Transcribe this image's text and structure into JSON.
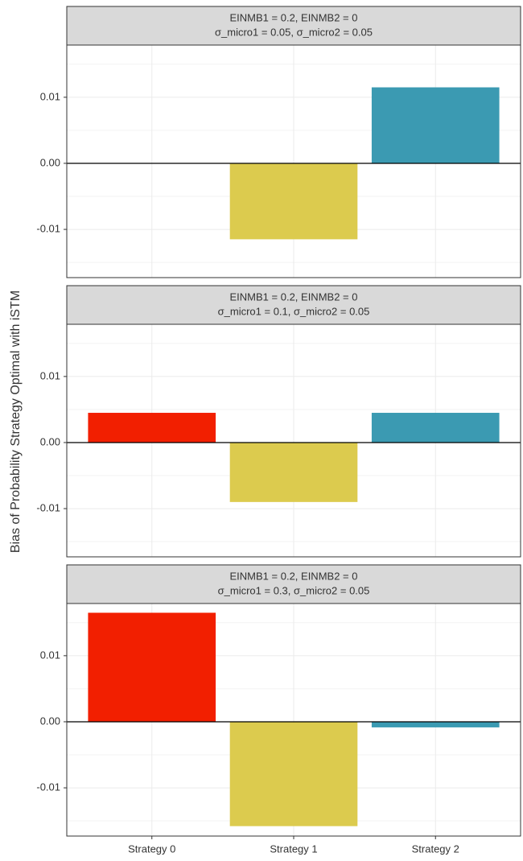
{
  "ylabel": "Bias of Probability Strategy Optimal with iSTM",
  "chart_data": [
    {
      "type": "bar",
      "title": [
        "EINMB1 = 0.2, EINMB2 = 0",
        "σ_micro1 = 0.05, σ_micro2 = 0.05"
      ],
      "categories": [
        "Strategy 0",
        "Strategy 1",
        "Strategy 2"
      ],
      "values": [
        0,
        -0.0115,
        0.0115
      ],
      "colors": [
        "#f21f00",
        "#dccb4e",
        "#3b9ab2"
      ],
      "ylim": [
        -0.0173,
        0.0179
      ],
      "yticks": [
        -0.01,
        {
          "value": 0,
          "label": "0.00"
        },
        0.01
      ],
      "minor_yticks": [
        -0.015,
        -0.005,
        0.005,
        0.015
      ],
      "grid": true
    },
    {
      "type": "bar",
      "title": [
        "EINMB1 = 0.2, EINMB2 = 0",
        "σ_micro1 = 0.1, σ_micro2 = 0.05"
      ],
      "categories": [
        "Strategy 0",
        "Strategy 1",
        "Strategy 2"
      ],
      "values": [
        0.0045,
        -0.009,
        0.0045
      ],
      "colors": [
        "#f21f00",
        "#dccb4e",
        "#3b9ab2"
      ],
      "ylim": [
        -0.0173,
        0.0179
      ],
      "yticks": [
        -0.01,
        {
          "value": 0,
          "label": "0.00"
        },
        0.01
      ],
      "minor_yticks": [
        -0.015,
        -0.005,
        0.005,
        0.015
      ],
      "grid": true
    },
    {
      "type": "bar",
      "title": [
        "EINMB1 = 0.2, EINMB2 = 0",
        "σ_micro1 = 0.3, σ_micro2 = 0.05"
      ],
      "categories": [
        "Strategy 0",
        "Strategy 1",
        "Strategy 2"
      ],
      "values": [
        0.0165,
        -0.0158,
        -0.00085
      ],
      "colors": [
        "#f21f00",
        "#dccb4e",
        "#3b9ab2"
      ],
      "ylim": [
        -0.0173,
        0.0179
      ],
      "yticks": [
        -0.01,
        {
          "value": 0,
          "label": "0.00"
        },
        0.01
      ],
      "minor_yticks": [
        -0.015,
        -0.005,
        0.005,
        0.015
      ],
      "grid": true
    }
  ]
}
